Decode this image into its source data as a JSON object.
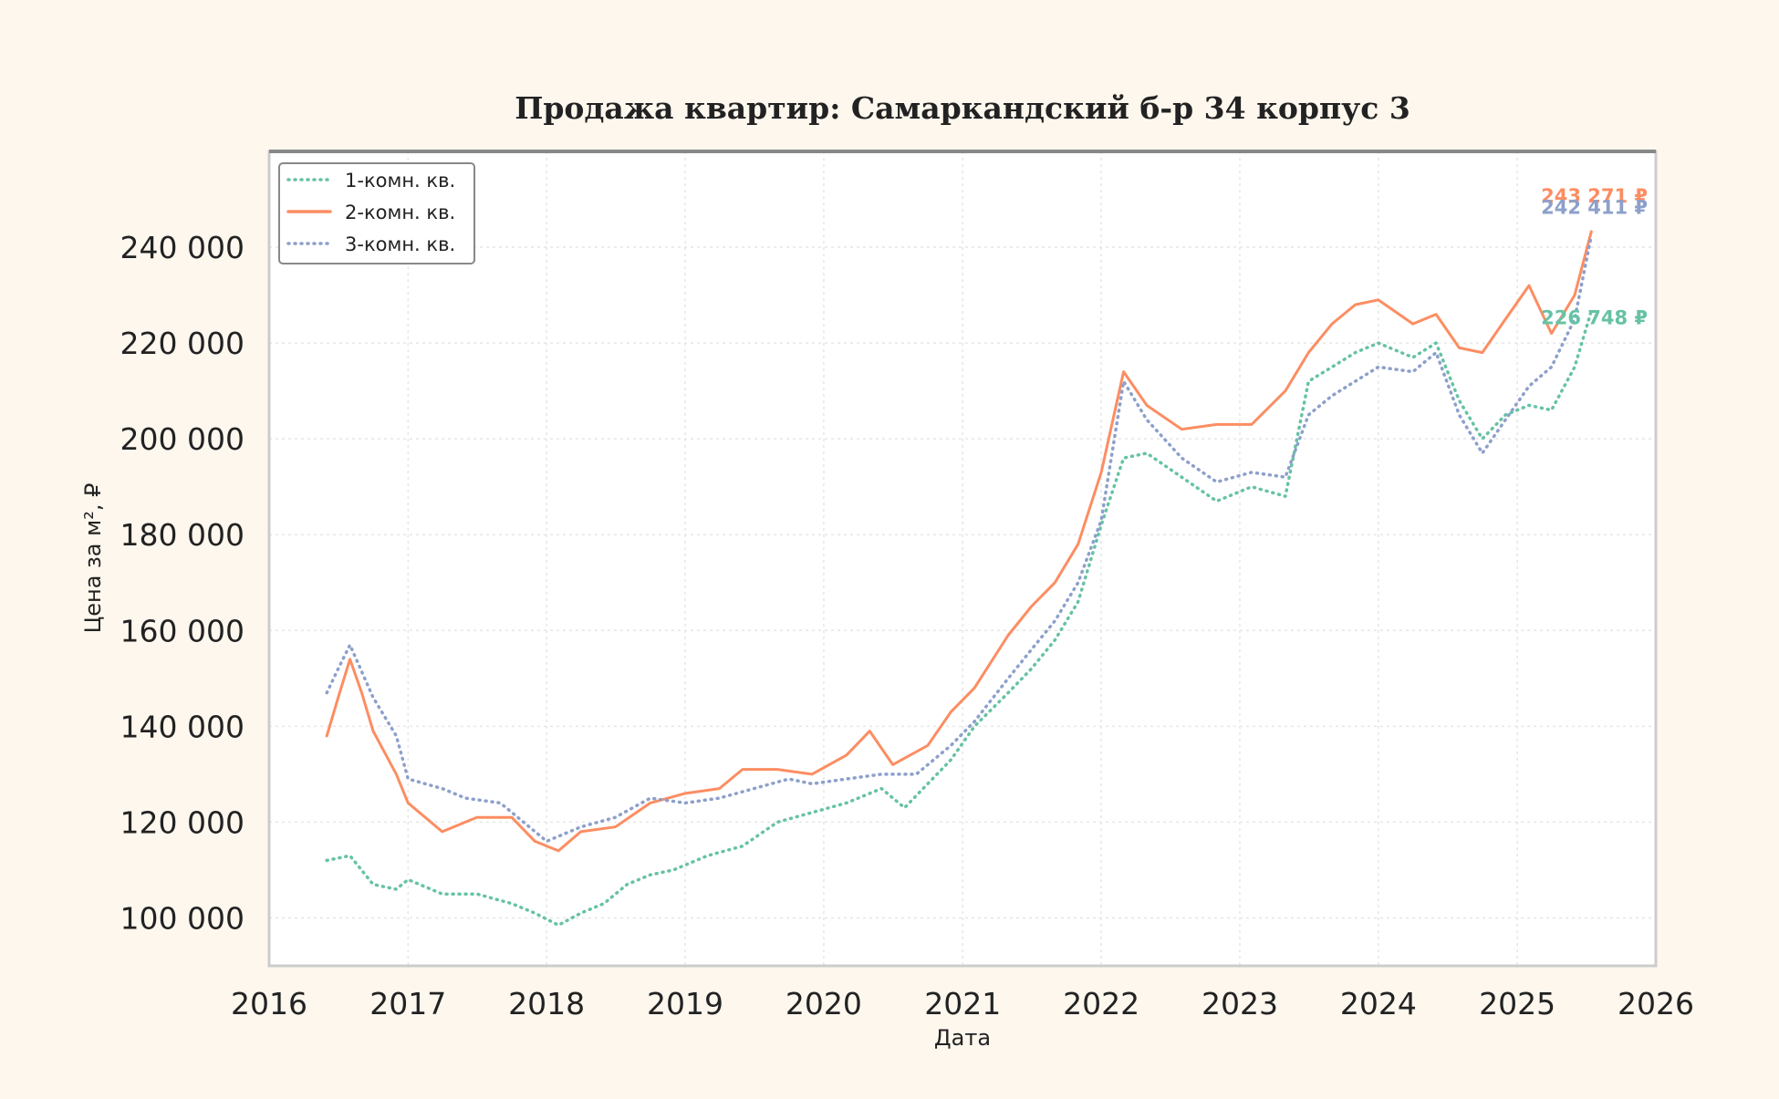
{
  "chart_data": {
    "type": "line",
    "title": "Продажа квартир: Самаркандский б-р 34 корпус 3",
    "xlabel": "Дата",
    "ylabel": "Цена за м², ₽",
    "xlim": [
      "2016-01-01",
      "2026-01-01"
    ],
    "ylim": [
      90000,
      260000
    ],
    "x_ticks": [
      "2016",
      "2017",
      "2018",
      "2019",
      "2020",
      "2021",
      "2022",
      "2023",
      "2024",
      "2025",
      "2026"
    ],
    "y_ticks": [
      {
        "value": 100000,
        "label": "100 000"
      },
      {
        "value": 120000,
        "label": "120 000"
      },
      {
        "value": 140000,
        "label": "140 000"
      },
      {
        "value": 160000,
        "label": "160 000"
      },
      {
        "value": 180000,
        "label": "180 000"
      },
      {
        "value": 200000,
        "label": "200 000"
      },
      {
        "value": 220000,
        "label": "220 000"
      },
      {
        "value": 240000,
        "label": "240 000"
      }
    ],
    "grid": true,
    "legend_position": "top-left",
    "series": [
      {
        "name": "1-комн. кв.",
        "color": "#66c2a5",
        "style": "dotted",
        "end_label": "226 748 ₽",
        "points": [
          [
            "2016-06-01",
            112000
          ],
          [
            "2016-08-01",
            113000
          ],
          [
            "2016-10-01",
            107000
          ],
          [
            "2016-12-01",
            106000
          ],
          [
            "2017-01-01",
            108000
          ],
          [
            "2017-04-01",
            105000
          ],
          [
            "2017-07-01",
            105000
          ],
          [
            "2017-10-01",
            103000
          ],
          [
            "2017-12-01",
            101000
          ],
          [
            "2018-02-01",
            98500
          ],
          [
            "2018-04-01",
            101000
          ],
          [
            "2018-06-01",
            103000
          ],
          [
            "2018-08-01",
            107000
          ],
          [
            "2018-10-01",
            109000
          ],
          [
            "2018-12-01",
            110000
          ],
          [
            "2019-03-01",
            113000
          ],
          [
            "2019-06-01",
            115000
          ],
          [
            "2019-09-01",
            120000
          ],
          [
            "2019-12-01",
            122000
          ],
          [
            "2020-03-01",
            124000
          ],
          [
            "2020-06-01",
            127000
          ],
          [
            "2020-08-01",
            123000
          ],
          [
            "2020-10-01",
            128000
          ],
          [
            "2020-12-01",
            133000
          ],
          [
            "2021-02-01",
            140000
          ],
          [
            "2021-05-01",
            147000
          ],
          [
            "2021-07-01",
            152000
          ],
          [
            "2021-09-01",
            158000
          ],
          [
            "2021-11-01",
            166000
          ],
          [
            "2022-01-01",
            182000
          ],
          [
            "2022-03-01",
            196000
          ],
          [
            "2022-05-01",
            197000
          ],
          [
            "2022-08-01",
            192000
          ],
          [
            "2022-11-01",
            187000
          ],
          [
            "2023-02-01",
            190000
          ],
          [
            "2023-05-01",
            188000
          ],
          [
            "2023-07-01",
            212000
          ],
          [
            "2023-09-01",
            215000
          ],
          [
            "2023-11-01",
            218000
          ],
          [
            "2024-01-01",
            220000
          ],
          [
            "2024-04-01",
            217000
          ],
          [
            "2024-06-01",
            220000
          ],
          [
            "2024-08-01",
            208000
          ],
          [
            "2024-10-01",
            200000
          ],
          [
            "2024-12-01",
            205000
          ],
          [
            "2025-02-01",
            207000
          ],
          [
            "2025-04-01",
            206000
          ],
          [
            "2025-06-01",
            215000
          ],
          [
            "2025-07-15",
            226748
          ]
        ]
      },
      {
        "name": "2-комн. кв.",
        "color": "#fc8d62",
        "style": "solid",
        "end_label": "243 271 ₽",
        "points": [
          [
            "2016-06-01",
            138000
          ],
          [
            "2016-07-01",
            146000
          ],
          [
            "2016-08-01",
            154000
          ],
          [
            "2016-09-01",
            147000
          ],
          [
            "2016-10-01",
            139000
          ],
          [
            "2016-12-01",
            130000
          ],
          [
            "2017-01-01",
            124000
          ],
          [
            "2017-04-01",
            118000
          ],
          [
            "2017-07-01",
            121000
          ],
          [
            "2017-10-01",
            121000
          ],
          [
            "2017-12-01",
            116000
          ],
          [
            "2018-02-01",
            114000
          ],
          [
            "2018-04-01",
            118000
          ],
          [
            "2018-07-01",
            119000
          ],
          [
            "2018-10-01",
            124000
          ],
          [
            "2019-01-01",
            126000
          ],
          [
            "2019-04-01",
            127000
          ],
          [
            "2019-06-01",
            131000
          ],
          [
            "2019-09-01",
            131000
          ],
          [
            "2019-12-01",
            130000
          ],
          [
            "2020-03-01",
            134000
          ],
          [
            "2020-05-01",
            139000
          ],
          [
            "2020-07-01",
            132000
          ],
          [
            "2020-10-01",
            136000
          ],
          [
            "2020-12-01",
            143000
          ],
          [
            "2021-02-01",
            148000
          ],
          [
            "2021-05-01",
            159000
          ],
          [
            "2021-07-01",
            165000
          ],
          [
            "2021-09-01",
            170000
          ],
          [
            "2021-11-01",
            178000
          ],
          [
            "2022-01-01",
            193000
          ],
          [
            "2022-03-01",
            214000
          ],
          [
            "2022-05-01",
            207000
          ],
          [
            "2022-08-01",
            202000
          ],
          [
            "2022-11-01",
            203000
          ],
          [
            "2023-02-01",
            203000
          ],
          [
            "2023-05-01",
            210000
          ],
          [
            "2023-07-01",
            218000
          ],
          [
            "2023-09-01",
            224000
          ],
          [
            "2023-11-01",
            228000
          ],
          [
            "2024-01-01",
            229000
          ],
          [
            "2024-04-01",
            224000
          ],
          [
            "2024-06-01",
            226000
          ],
          [
            "2024-08-01",
            219000
          ],
          [
            "2024-10-01",
            218000
          ],
          [
            "2024-12-01",
            225000
          ],
          [
            "2025-02-01",
            232000
          ],
          [
            "2025-04-01",
            222000
          ],
          [
            "2025-06-01",
            230000
          ],
          [
            "2025-07-15",
            243271
          ]
        ]
      },
      {
        "name": "3-комн. кв.",
        "color": "#8da0cb",
        "style": "dotted",
        "end_label": "242 411 ₽",
        "points": [
          [
            "2016-06-01",
            147000
          ],
          [
            "2016-07-01",
            152000
          ],
          [
            "2016-08-01",
            157000
          ],
          [
            "2016-10-01",
            146000
          ],
          [
            "2016-12-01",
            138000
          ],
          [
            "2017-01-01",
            129000
          ],
          [
            "2017-04-01",
            127000
          ],
          [
            "2017-06-01",
            125000
          ],
          [
            "2017-09-01",
            124000
          ],
          [
            "2017-11-01",
            120000
          ],
          [
            "2018-01-01",
            116000
          ],
          [
            "2018-04-01",
            119000
          ],
          [
            "2018-07-01",
            121000
          ],
          [
            "2018-10-01",
            125000
          ],
          [
            "2019-01-01",
            124000
          ],
          [
            "2019-04-01",
            125000
          ],
          [
            "2019-07-01",
            127000
          ],
          [
            "2019-10-01",
            129000
          ],
          [
            "2019-12-01",
            128000
          ],
          [
            "2020-03-01",
            129000
          ],
          [
            "2020-06-01",
            130000
          ],
          [
            "2020-09-01",
            130000
          ],
          [
            "2020-12-01",
            136000
          ],
          [
            "2021-02-01",
            141000
          ],
          [
            "2021-05-01",
            150000
          ],
          [
            "2021-07-01",
            156000
          ],
          [
            "2021-09-01",
            162000
          ],
          [
            "2021-11-01",
            170000
          ],
          [
            "2022-01-01",
            183000
          ],
          [
            "2022-03-01",
            212000
          ],
          [
            "2022-05-01",
            204000
          ],
          [
            "2022-08-01",
            196000
          ],
          [
            "2022-11-01",
            191000
          ],
          [
            "2023-02-01",
            193000
          ],
          [
            "2023-05-01",
            192000
          ],
          [
            "2023-07-01",
            205000
          ],
          [
            "2023-09-01",
            209000
          ],
          [
            "2023-11-01",
            212000
          ],
          [
            "2024-01-01",
            215000
          ],
          [
            "2024-04-01",
            214000
          ],
          [
            "2024-06-01",
            218000
          ],
          [
            "2024-08-01",
            205000
          ],
          [
            "2024-10-01",
            197000
          ],
          [
            "2024-12-01",
            204000
          ],
          [
            "2025-02-01",
            211000
          ],
          [
            "2025-04-01",
            215000
          ],
          [
            "2025-06-01",
            225000
          ],
          [
            "2025-07-15",
            242411
          ]
        ]
      }
    ]
  }
}
